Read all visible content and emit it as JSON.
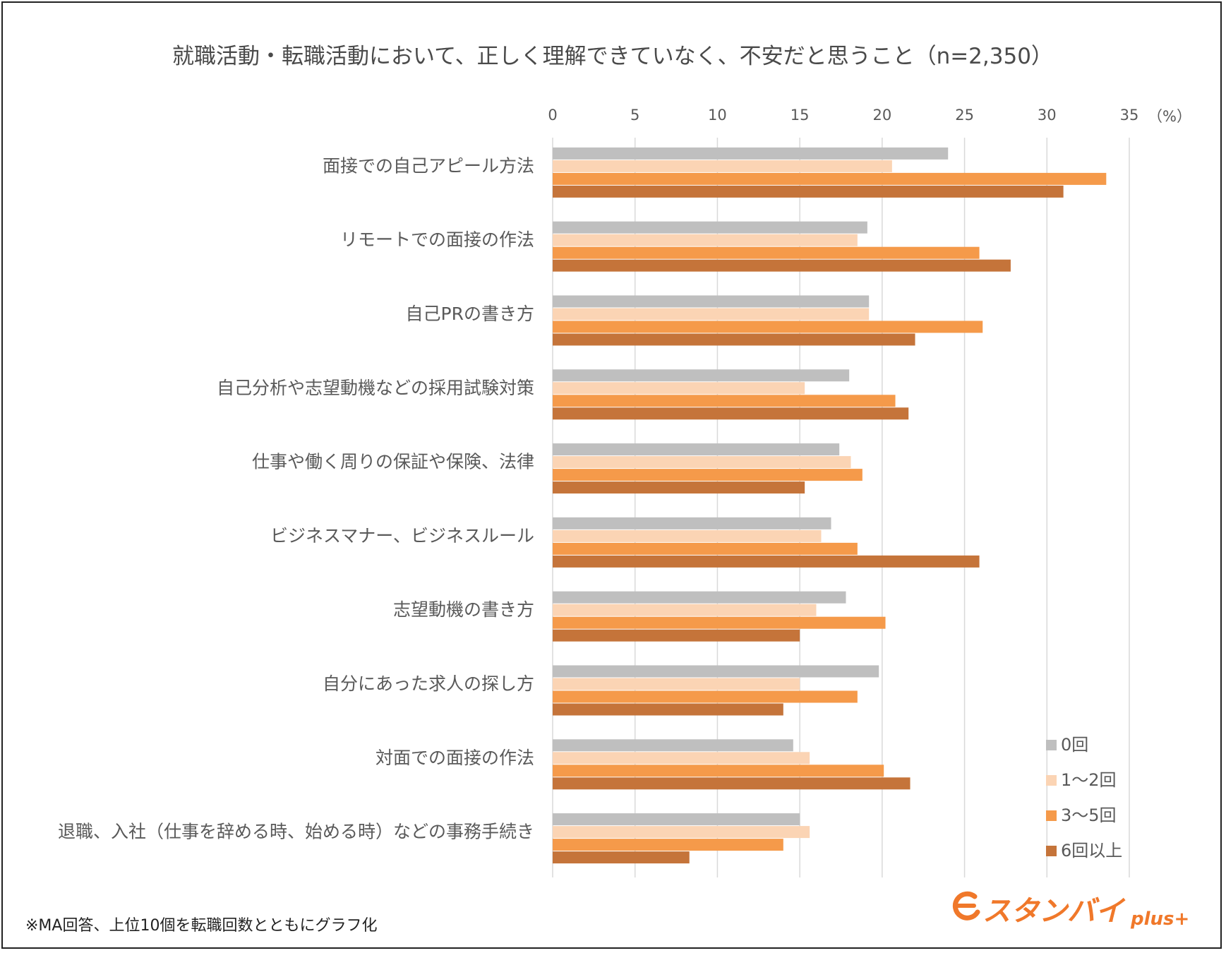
{
  "chart_data": {
    "type": "bar",
    "orientation": "horizontal",
    "title": "就職活動・転職活動において、正しく理解できていなく、不安だと思うこと（n=2,350）",
    "unit_label": "（%）",
    "xlim": [
      0,
      35
    ],
    "ticks": [
      "0",
      "5",
      "10",
      "15",
      "20",
      "25",
      "30",
      "35"
    ],
    "grid": true,
    "legend_position": "bottom-right",
    "categories": [
      "面接での自己アピール方法",
      "リモートでの面接の作法",
      "自己PRの書き方",
      "自己分析や志望動機などの採用試験対策",
      "仕事や働く周りの保証や保険、法律",
      "ビジネスマナー、ビジネスルール",
      "志望動機の書き方",
      "自分にあった求人の探し方",
      "対面での面接の作法",
      "退職、入社（仕事を辞める時、始める時）などの事務手続き"
    ],
    "series": [
      {
        "name": "0回",
        "color": "#bfbfbf",
        "values": [
          24.0,
          19.1,
          19.2,
          18.0,
          17.4,
          16.9,
          17.8,
          19.8,
          14.6,
          15.0
        ]
      },
      {
        "name": "1〜2回",
        "color": "#fbd4b4",
        "values": [
          20.6,
          18.5,
          19.2,
          15.3,
          18.1,
          16.3,
          16.0,
          15.0,
          15.6,
          15.6
        ]
      },
      {
        "name": "3〜5回",
        "color": "#f59a4a",
        "values": [
          33.6,
          25.9,
          26.1,
          20.8,
          18.8,
          18.5,
          20.2,
          18.5,
          20.1,
          14.0
        ]
      },
      {
        "name": "6回以上",
        "color": "#c5743a",
        "values": [
          31.0,
          27.8,
          22.0,
          21.6,
          15.3,
          25.9,
          15.0,
          14.0,
          21.7,
          8.3
        ]
      }
    ]
  },
  "footnote": "※MA回答、上位10個を転職回数とともにグラフ化",
  "logo": {
    "name": "スタンバイ",
    "suffix": "plus+"
  }
}
